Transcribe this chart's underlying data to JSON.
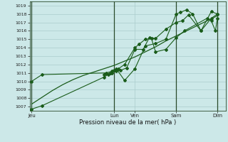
{
  "xlabel": "Pression niveau de la mer( hPa )",
  "ylim": [
    1006.5,
    1019.5
  ],
  "yticks": [
    1007,
    1008,
    1009,
    1010,
    1011,
    1012,
    1013,
    1014,
    1015,
    1016,
    1017,
    1018,
    1019
  ],
  "bg_color": "#cce8e8",
  "grid_color": "#aacccc",
  "line_color": "#1a5c1a",
  "day_labels": [
    "Jeu",
    "Lun",
    "Ven",
    "Sam",
    "Dim"
  ],
  "day_positions": [
    0,
    4.0,
    5.0,
    7.0,
    9.0
  ],
  "vline_positions": [
    0,
    4.0,
    7.0,
    9.0
  ],
  "xlim": [
    -0.1,
    9.4
  ],
  "figsize": [
    3.2,
    2.0
  ],
  "dpi": 100,
  "smooth_x": [
    0.0,
    0.5,
    1.0,
    1.5,
    2.0,
    2.5,
    3.0,
    3.5,
    4.0,
    4.5,
    5.0,
    5.5,
    6.0,
    6.5,
    7.0,
    7.5,
    8.0,
    8.5,
    9.0
  ],
  "smooth_y": [
    1007.3,
    1008.1,
    1008.9,
    1009.6,
    1010.2,
    1010.7,
    1011.1,
    1011.5,
    1011.9,
    1012.4,
    1012.9,
    1013.5,
    1014.1,
    1014.8,
    1015.4,
    1016.0,
    1016.6,
    1017.2,
    1017.8
  ],
  "line1_x": [
    0.0,
    0.5,
    3.5,
    3.7,
    3.9,
    4.1,
    4.3,
    4.6,
    5.0,
    5.4,
    5.7,
    6.0,
    6.5,
    7.0,
    7.3,
    7.6,
    8.2,
    8.7,
    9.0
  ],
  "line1_y": [
    1006.7,
    1007.1,
    1010.5,
    1010.8,
    1011.0,
    1011.2,
    1011.3,
    1011.6,
    1013.8,
    1013.8,
    1015.2,
    1015.1,
    1016.2,
    1017.0,
    1017.2,
    1017.9,
    1016.0,
    1017.5,
    1018.0
  ],
  "line2_x": [
    0.0,
    0.5,
    3.6,
    3.9,
    4.1,
    4.5,
    5.0,
    5.5,
    6.0,
    6.5,
    7.0,
    7.2,
    7.5,
    7.8,
    8.2,
    8.7,
    9.0
  ],
  "line2_y": [
    1010.0,
    1010.8,
    1011.0,
    1011.2,
    1011.5,
    1010.1,
    1011.5,
    1014.2,
    1014.5,
    1015.0,
    1018.0,
    1018.2,
    1018.5,
    1018.0,
    1016.0,
    1018.3,
    1018.0
  ],
  "line3_x": [
    3.5,
    3.8,
    4.0,
    4.2,
    4.5,
    5.0,
    5.2,
    5.5,
    5.8,
    6.0,
    6.5,
    7.0,
    7.4,
    8.5,
    8.7,
    8.9,
    9.0
  ],
  "line3_y": [
    1010.8,
    1011.0,
    1011.3,
    1011.5,
    1012.0,
    1014.0,
    1014.4,
    1015.0,
    1015.1,
    1013.5,
    1013.8,
    1015.2,
    1016.0,
    1017.5,
    1017.2,
    1016.0,
    1017.5
  ]
}
